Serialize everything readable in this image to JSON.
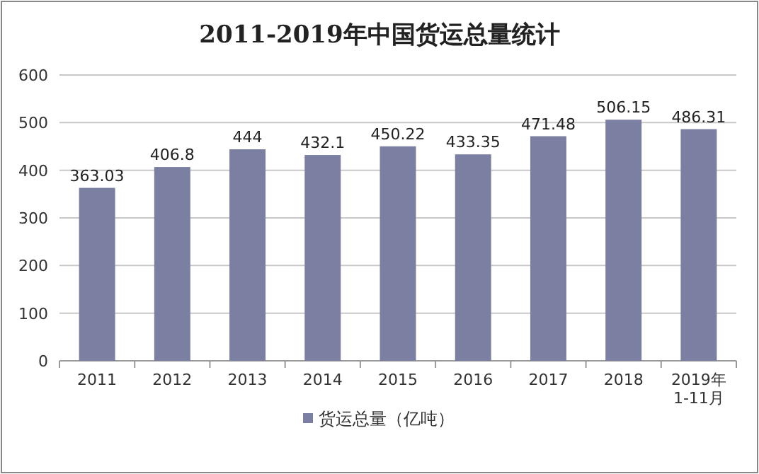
{
  "chart_data": {
    "type": "bar",
    "title": "2011-2019年中国货运总量统计",
    "categories": [
      "2011",
      "2012",
      "2013",
      "2014",
      "2015",
      "2016",
      "2017",
      "2018",
      "2019年\n1-11月"
    ],
    "series": [
      {
        "name": "货运总量（亿吨）",
        "color": "#7b7fa1",
        "values": [
          363.03,
          406.8,
          444,
          432.1,
          450.22,
          433.35,
          471.48,
          506.15,
          486.31
        ]
      }
    ],
    "ylim": [
      0,
      600
    ],
    "yticks": [
      0,
      100,
      200,
      300,
      400,
      500,
      600
    ],
    "grid": "y",
    "legend": "bottom",
    "data_labels": true
  }
}
